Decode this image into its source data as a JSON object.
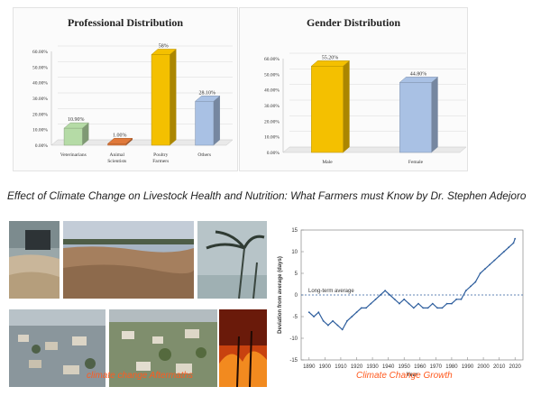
{
  "headline": "Effect of Climate Change on Livestock Health and Nutrition: What Farmers must Know by Dr. Stephen Adejoro",
  "chart_data": [
    {
      "type": "bar",
      "title": "Professional Distribution",
      "categories": [
        "Veterinarians",
        "Animal Scientists",
        "Poultry Farmers",
        "Others"
      ],
      "values": [
        10.9,
        1.0,
        58.0,
        28.1
      ],
      "data_labels": [
        "10.90%",
        "1.00%",
        "58%",
        "28.10%"
      ],
      "yticks": [
        "0.00%",
        "10.00%",
        "20.00%",
        "30.00%",
        "40.00%",
        "50.00%",
        "60.00%"
      ],
      "ylim": [
        0,
        60
      ],
      "grid": true,
      "colors": [
        "#b5dba6",
        "#e0793a",
        "#f4c000",
        "#a9c1e4"
      ]
    },
    {
      "type": "bar",
      "title": "Gender Distribution",
      "categories": [
        "Male",
        "Female"
      ],
      "values": [
        55.2,
        44.8
      ],
      "data_labels": [
        "55.20%",
        "44.80%"
      ],
      "yticks": [
        "0.00%",
        "10.00%",
        "20.00%",
        "30.00%",
        "40.00%",
        "50.00%",
        "60.00%"
      ],
      "ylim": [
        0,
        60
      ],
      "grid": true,
      "colors": [
        "#f4c000",
        "#a9c1e4"
      ]
    },
    {
      "type": "line",
      "ylabel": "Deviation from average (days)",
      "xlabel": "Year",
      "annotation": "Long-term average",
      "xlim": [
        1885,
        2025
      ],
      "ylim": [
        -15,
        15
      ],
      "xticks": [
        "1890",
        "1900",
        "1910",
        "1920",
        "1930",
        "1940",
        "1950",
        "1960",
        "1970",
        "1980",
        "1990",
        "2000",
        "2010",
        "2020"
      ],
      "yticks": [
        "-15",
        "-10",
        "-5",
        "0",
        "5",
        "10",
        "15"
      ],
      "x": [
        1890,
        1893,
        1896,
        1899,
        1902,
        1905,
        1908,
        1911,
        1914,
        1917,
        1920,
        1923,
        1926,
        1929,
        1932,
        1935,
        1938,
        1941,
        1944,
        1947,
        1950,
        1953,
        1956,
        1959,
        1962,
        1965,
        1968,
        1971,
        1974,
        1977,
        1980,
        1983,
        1986,
        1989,
        1992,
        1995,
        1998,
        2001,
        2004,
        2007,
        2010,
        2013,
        2016,
        2019,
        2020
      ],
      "y": [
        -4,
        -5,
        -4,
        -6,
        -7,
        -6,
        -7,
        -8,
        -6,
        -5,
        -4,
        -3,
        -3,
        -2,
        -1,
        0,
        1,
        0,
        -1,
        -2,
        -1,
        -2,
        -3,
        -2,
        -3,
        -3,
        -2,
        -3,
        -3,
        -2,
        -2,
        -1,
        -1,
        1,
        2,
        3,
        5,
        6,
        7,
        8,
        9,
        10,
        11,
        12,
        13
      ],
      "color": "#2f5f9e"
    }
  ],
  "photos": {
    "caption_left": "climate change Aftermaths",
    "caption_right": "Climate Change Growth"
  }
}
